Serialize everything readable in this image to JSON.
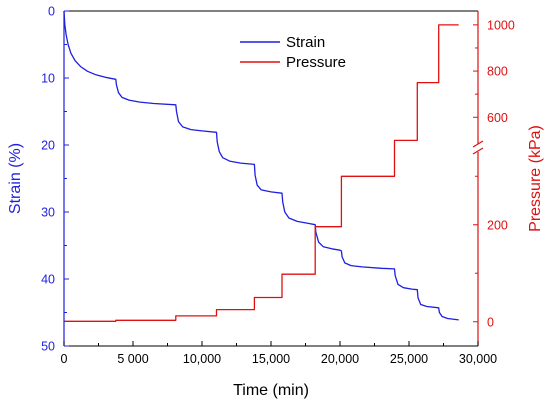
{
  "chart_data": {
    "type": "line",
    "title": "",
    "xlabel": "Time (min)",
    "ylabel_left": "Strain (%)",
    "ylabel_right": "Pressure (kPa)",
    "xlim": [
      0,
      30000
    ],
    "ylim_left": [
      0,
      50
    ],
    "left_axis_inverted": true,
    "right_axis_broken": true,
    "right_axis_segments": {
      "lower": [
        -50,
        350
      ],
      "upper": [
        480,
        1060
      ]
    },
    "x_tick_labels": [
      "0",
      "5 000",
      "10,000",
      "15,000",
      "20,000",
      "25,000",
      "30,000"
    ],
    "x_ticks": [
      0,
      5000,
      10000,
      15000,
      20000,
      25000,
      30000
    ],
    "y_left_ticks": [
      0,
      10,
      20,
      30,
      40,
      50
    ],
    "y_left_tick_labels": [
      "0",
      "10",
      "20",
      "30",
      "40",
      "50"
    ],
    "y_right_ticks": [
      0,
      200,
      600,
      800,
      1000
    ],
    "y_right_tick_labels": [
      "0",
      "200",
      "600",
      "800",
      "1000"
    ],
    "legend_position": "top-center",
    "colors": {
      "Strain": "#1f1fe0",
      "Pressure": "#e01010",
      "frame": "#000000"
    },
    "series": [
      {
        "name": "Strain",
        "axis": "left",
        "points": [
          [
            0,
            0
          ],
          [
            60,
            2
          ],
          [
            150,
            3.5
          ],
          [
            300,
            5
          ],
          [
            500,
            6.3
          ],
          [
            800,
            7.4
          ],
          [
            1200,
            8.3
          ],
          [
            1700,
            9
          ],
          [
            2300,
            9.5
          ],
          [
            3000,
            9.9
          ],
          [
            3750,
            10.2
          ],
          [
            3800,
            11
          ],
          [
            3950,
            12.2
          ],
          [
            4200,
            12.9
          ],
          [
            4700,
            13.3
          ],
          [
            5500,
            13.6
          ],
          [
            6500,
            13.8
          ],
          [
            8100,
            14
          ],
          [
            8150,
            15
          ],
          [
            8300,
            16.5
          ],
          [
            8600,
            17.3
          ],
          [
            9200,
            17.7
          ],
          [
            10000,
            17.9
          ],
          [
            11050,
            18.1
          ],
          [
            11100,
            19.5
          ],
          [
            11250,
            21
          ],
          [
            11500,
            21.9
          ],
          [
            12000,
            22.4
          ],
          [
            12800,
            22.7
          ],
          [
            13800,
            22.9
          ],
          [
            13850,
            24.5
          ],
          [
            14000,
            26
          ],
          [
            14300,
            26.7
          ],
          [
            15000,
            27
          ],
          [
            15800,
            27.2
          ],
          [
            15850,
            28.5
          ],
          [
            16000,
            30
          ],
          [
            16300,
            30.9
          ],
          [
            16900,
            31.4
          ],
          [
            17700,
            31.7
          ],
          [
            18200,
            31.9
          ],
          [
            18250,
            33
          ],
          [
            18450,
            34.5
          ],
          [
            18800,
            35.2
          ],
          [
            19400,
            35.5
          ],
          [
            20000,
            35.7
          ],
          [
            20100,
            35.8
          ],
          [
            20150,
            36.7
          ],
          [
            20350,
            37.6
          ],
          [
            20800,
            38
          ],
          [
            21600,
            38.2
          ],
          [
            23000,
            38.4
          ],
          [
            23950,
            38.5
          ],
          [
            24000,
            39.5
          ],
          [
            24200,
            40.8
          ],
          [
            24600,
            41.3
          ],
          [
            25200,
            41.5
          ],
          [
            25600,
            41.6
          ],
          [
            25650,
            42.8
          ],
          [
            25850,
            43.8
          ],
          [
            26300,
            44.1
          ],
          [
            27150,
            44.3
          ],
          [
            27200,
            45
          ],
          [
            27400,
            45.6
          ],
          [
            27800,
            45.9
          ],
          [
            28600,
            46.1
          ]
        ]
      },
      {
        "name": "Pressure",
        "axis": "right",
        "points": [
          [
            0,
            1
          ],
          [
            3750,
            1
          ],
          [
            3750,
            3
          ],
          [
            8100,
            3
          ],
          [
            8100,
            12
          ],
          [
            11050,
            12
          ],
          [
            11050,
            25
          ],
          [
            13800,
            25
          ],
          [
            13800,
            50
          ],
          [
            15800,
            50
          ],
          [
            15800,
            98
          ],
          [
            18200,
            98
          ],
          [
            18200,
            196
          ],
          [
            20100,
            196
          ],
          [
            20100,
            300
          ],
          [
            23950,
            300
          ],
          [
            23950,
            500
          ],
          [
            25600,
            500
          ],
          [
            25600,
            750
          ],
          [
            27150,
            750
          ],
          [
            27150,
            1000
          ],
          [
            28600,
            1000
          ]
        ]
      }
    ]
  }
}
